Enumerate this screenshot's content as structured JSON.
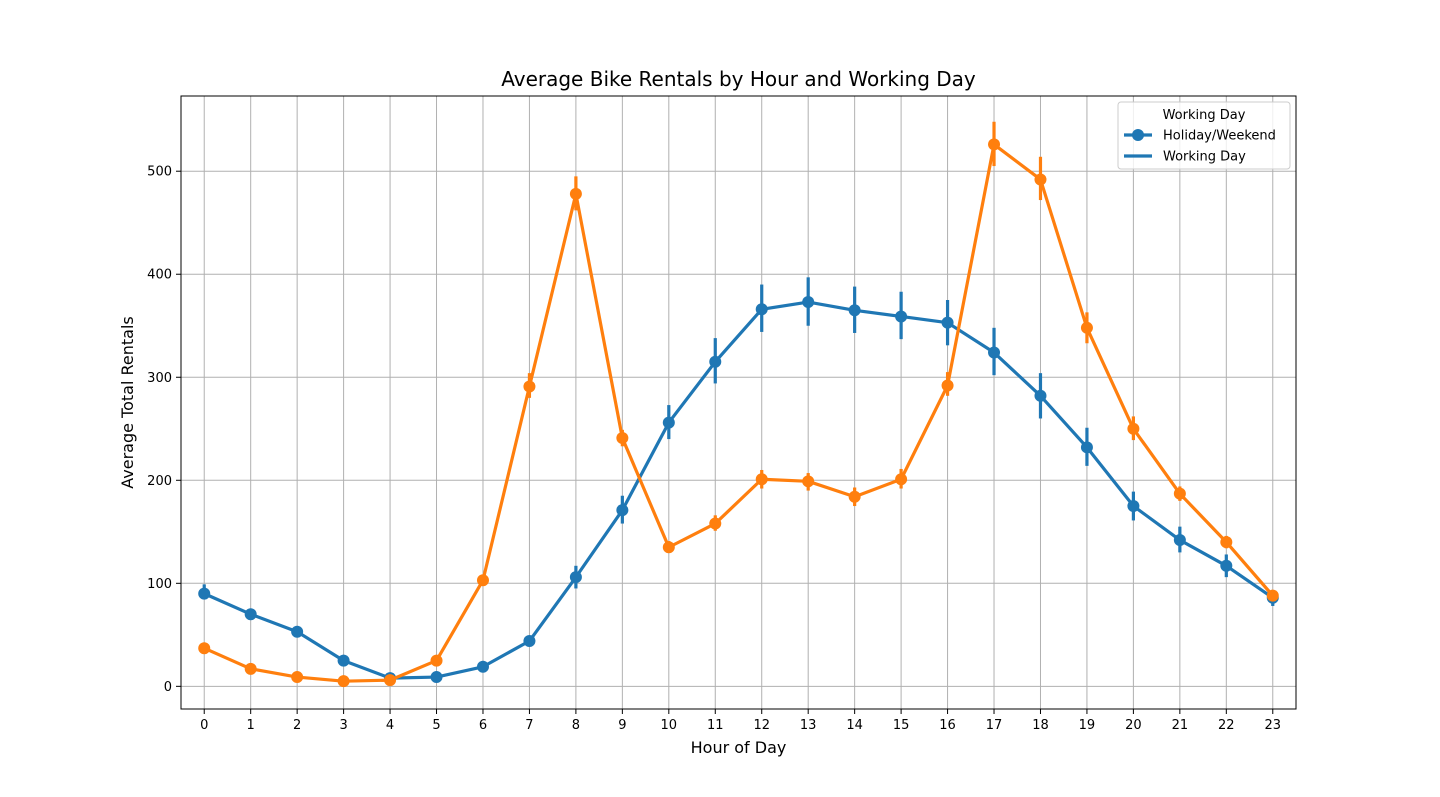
{
  "chart_data": {
    "type": "line",
    "title": "Average Bike Rentals by Hour and Working Day",
    "xlabel": "Hour of Day",
    "ylabel": "Average Total Rentals",
    "categories": [
      "0",
      "1",
      "2",
      "3",
      "4",
      "5",
      "6",
      "7",
      "8",
      "9",
      "10",
      "11",
      "12",
      "13",
      "14",
      "15",
      "16",
      "17",
      "18",
      "19",
      "20",
      "21",
      "22",
      "23"
    ],
    "ylim": [
      -22,
      573
    ],
    "yticks": [
      "0",
      "100",
      "200",
      "300",
      "400",
      "500"
    ],
    "grid": true,
    "legend": {
      "title": "Working Day",
      "placement": "top-right",
      "entries": [
        "Holiday/Weekend",
        "Working Day"
      ]
    },
    "series": [
      {
        "name": "Holiday/Weekend",
        "color": "#1f77b4",
        "values": [
          90,
          70,
          53,
          25,
          8,
          9,
          19,
          44,
          106,
          171,
          256,
          315,
          366,
          373,
          365,
          359,
          353,
          324,
          282,
          232,
          175,
          142,
          117,
          86
        ],
        "err_low": [
          85,
          66,
          50,
          23,
          6,
          8,
          17,
          41,
          95,
          158,
          240,
          294,
          344,
          350,
          343,
          337,
          331,
          302,
          260,
          214,
          161,
          130,
          106,
          78
        ],
        "err_high": [
          99,
          74,
          57,
          28,
          10,
          11,
          22,
          48,
          117,
          185,
          273,
          338,
          390,
          397,
          388,
          383,
          375,
          348,
          304,
          251,
          189,
          155,
          128,
          93
        ]
      },
      {
        "name": "",
        "color": "#ff7f0e",
        "values": [
          37,
          17,
          9,
          5,
          6,
          25,
          103,
          291,
          478,
          241,
          135,
          158,
          201,
          199,
          184,
          201,
          292,
          526,
          492,
          348,
          250,
          187,
          140,
          88
        ],
        "err_low": [
          35,
          15,
          7,
          4,
          5,
          22,
          99,
          280,
          462,
          233,
          130,
          151,
          192,
          190,
          175,
          192,
          282,
          505,
          472,
          333,
          239,
          180,
          134,
          84
        ],
        "err_high": [
          39,
          19,
          11,
          6,
          7,
          28,
          107,
          304,
          495,
          249,
          141,
          166,
          210,
          207,
          193,
          211,
          305,
          548,
          514,
          363,
          262,
          194,
          146,
          92
        ]
      }
    ]
  }
}
